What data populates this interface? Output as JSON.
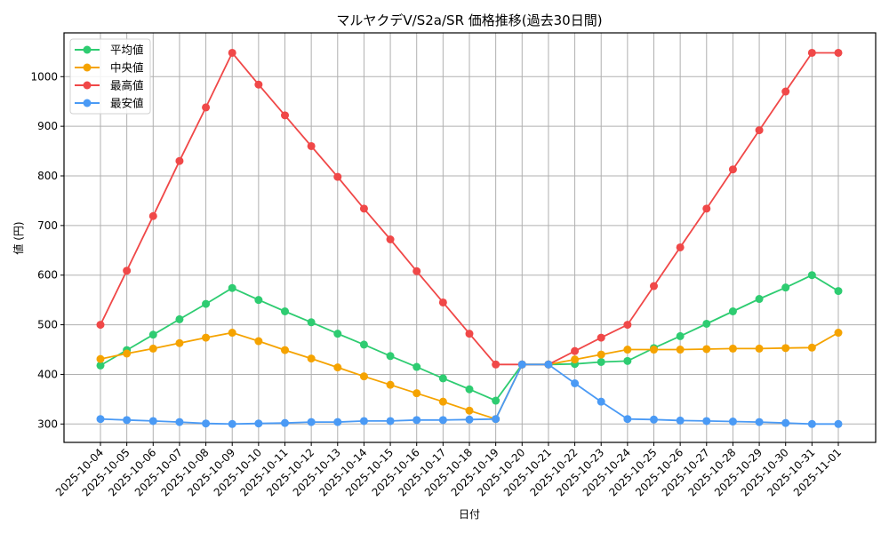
{
  "chart_data": {
    "type": "line",
    "title": "マルヤクデV/S2a/SR 価格推移(過去30日間)",
    "xlabel": "日付",
    "ylabel": "価格（円）",
    "ylabel_display": "値 (円)",
    "ylim": [
      265,
      1085
    ],
    "yticks": [
      300,
      400,
      500,
      600,
      700,
      800,
      900,
      1000
    ],
    "grid": true,
    "legend_position": "upper left",
    "categories": [
      "2025-10-04",
      "2025-10-05",
      "2025-10-06",
      "2025-10-07",
      "2025-10-08",
      "2025-10-09",
      "2025-10-10",
      "2025-10-11",
      "2025-10-12",
      "2025-10-13",
      "2025-10-14",
      "2025-10-15",
      "2025-10-16",
      "2025-10-17",
      "2025-10-18",
      "2025-10-19",
      "2025-10-20",
      "2025-10-21",
      "2025-10-22",
      "2025-10-23",
      "2025-10-24",
      "2025-10-25",
      "2025-10-26",
      "2025-10-27",
      "2025-10-28",
      "2025-10-29",
      "2025-10-30",
      "2025-10-31",
      "2025-11-01"
    ],
    "series": [
      {
        "name": "平均値",
        "color": "#2ecc71",
        "values": [
          418,
          449,
          480,
          511,
          542,
          574,
          550,
          527,
          505,
          482,
          460,
          437,
          415,
          392,
          370,
          347,
          420,
          420,
          421,
          425,
          427,
          453,
          477,
          502,
          527,
          552,
          575,
          600,
          568
        ]
      },
      {
        "name": "中央値",
        "color": "#f5a300",
        "values": [
          431,
          442,
          452,
          463,
          474,
          484,
          467,
          449,
          432,
          414,
          396,
          379,
          362,
          345,
          327,
          310,
          420,
          420,
          430,
          440,
          450,
          450,
          450,
          451,
          452,
          452,
          453,
          454,
          484
        ]
      },
      {
        "name": "最高値",
        "color": "#f04848",
        "values": [
          500,
          609,
          719,
          830,
          938,
          1048,
          984,
          922,
          860,
          798,
          734,
          672,
          608,
          545,
          482,
          420,
          420,
          420,
          447,
          474,
          500,
          578,
          656,
          734,
          813,
          892,
          970,
          1048,
          1048
        ]
      },
      {
        "name": "最安値",
        "color": "#4a9af5",
        "values": [
          310,
          308,
          306,
          304,
          301,
          300,
          301,
          302,
          304,
          304,
          306,
          306,
          308,
          308,
          309,
          310,
          420,
          420,
          382,
          345,
          310,
          309,
          307,
          306,
          305,
          304,
          302,
          300,
          300
        ]
      }
    ]
  }
}
